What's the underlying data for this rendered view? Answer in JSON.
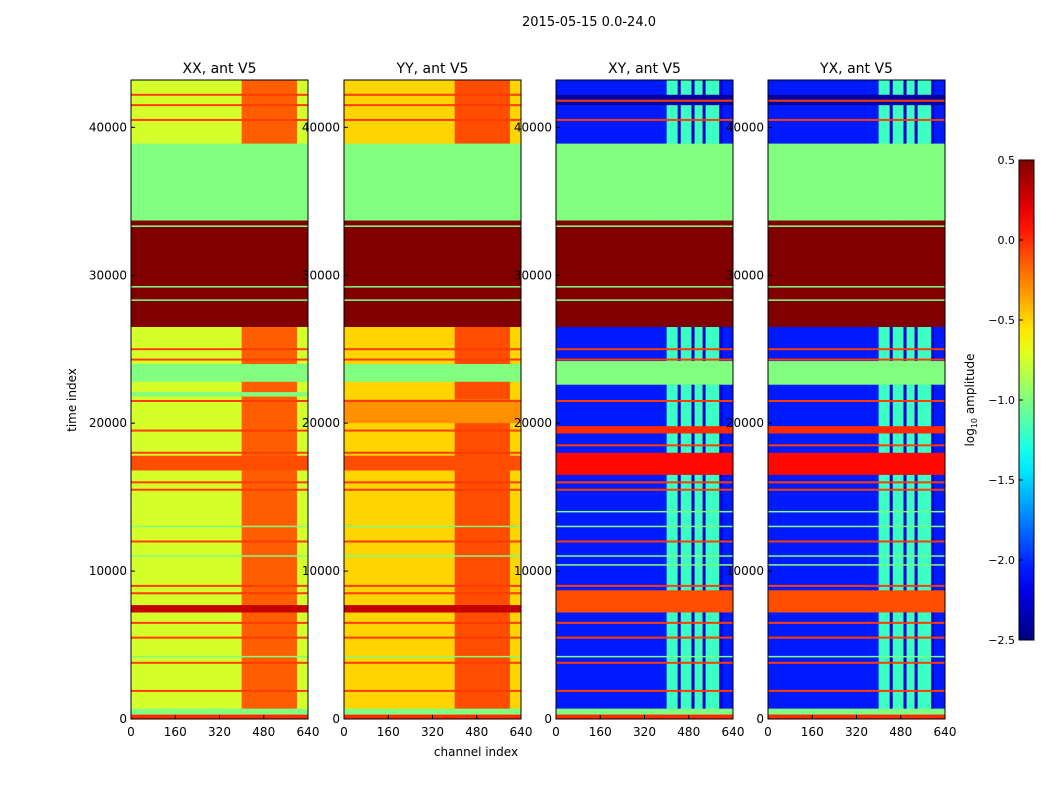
{
  "chart_data": {
    "type": "heatmap",
    "suptitle": "2015-05-15 0.0-24.0",
    "xlabel": "channel index",
    "ylabel": "time index",
    "xlim": [
      0,
      640
    ],
    "ylim": [
      0,
      43200
    ],
    "xticks": [
      0,
      160,
      320,
      480,
      640
    ],
    "yticks": [
      0,
      10000,
      20000,
      30000,
      40000
    ],
    "colorbar": {
      "label": "log10 amplitude",
      "label_main": "log",
      "label_sub": "10",
      "label_rest": " amplitude",
      "range": [
        -2.5,
        0.5
      ],
      "ticks": [
        "0.5",
        "0.0",
        "−0.5",
        "−1.0",
        "−1.5",
        "−2.0",
        "−2.5"
      ],
      "tick_values": [
        0.5,
        0.0,
        -0.5,
        -1.0,
        -1.5,
        -2.0,
        -2.5
      ],
      "colormap": "jet"
    },
    "panels": [
      {
        "title": "XX, ant V5",
        "base": -0.75,
        "hot_channels": [
          400,
          600
        ],
        "hot_value": -0.15,
        "stripes": [],
        "bands": [
          [
            0,
            300,
            0.0
          ],
          [
            300,
            700,
            -1.0
          ],
          [
            7200,
            7700,
            0.3
          ],
          [
            16800,
            17800,
            -0.1
          ],
          [
            21800,
            22100,
            -1.0
          ],
          [
            22800,
            24000,
            -1.0
          ],
          [
            26500,
            33700,
            0.5
          ],
          [
            33700,
            38900,
            -1.0
          ]
        ],
        "lines": [
          1900,
          3800,
          5500,
          6500,
          8500,
          9000,
          12000,
          15500,
          16000,
          18000,
          19500,
          21500,
          24300,
          25000,
          40500,
          41500,
          42200
        ],
        "line_value": -0.05,
        "green_lines": [
          28300,
          29200,
          33300,
          13000,
          11000,
          4200
        ]
      },
      {
        "title": "YY, ant V5",
        "base": -0.5,
        "hot_channels": [
          400,
          600
        ],
        "hot_value": -0.1,
        "stripes": [],
        "bands": [
          [
            0,
            300,
            0.0
          ],
          [
            300,
            700,
            -1.0
          ],
          [
            7200,
            7700,
            0.3
          ],
          [
            16800,
            17800,
            -0.1
          ],
          [
            20000,
            21600,
            -0.3
          ],
          [
            22800,
            24000,
            -1.0
          ],
          [
            26500,
            33700,
            0.5
          ],
          [
            33700,
            38900,
            -1.0
          ]
        ],
        "lines": [
          1900,
          3800,
          5500,
          6500,
          8500,
          9000,
          12000,
          15500,
          16000,
          18000,
          19500,
          21500,
          24300,
          25000,
          40500,
          41500,
          42200
        ],
        "line_value": -0.05,
        "green_lines": [
          28300,
          29200,
          33300,
          13000,
          11000,
          4200
        ]
      },
      {
        "title": "XY, ant V5",
        "base": -2.05,
        "hot_channels": [
          400,
          600
        ],
        "hot_value": -1.2,
        "stripes": [
          440,
          490,
          530,
          590
        ],
        "bands": [
          [
            0,
            300,
            0.0
          ],
          [
            300,
            700,
            -1.0
          ],
          [
            7200,
            8700,
            -0.1
          ],
          [
            16500,
            18000,
            0.1
          ],
          [
            19300,
            19800,
            0.0
          ],
          [
            22600,
            24200,
            -1.0
          ],
          [
            26500,
            33700,
            0.5
          ],
          [
            33700,
            38900,
            -1.0
          ],
          [
            41500,
            42200,
            -2.4
          ]
        ],
        "lines": [
          1900,
          3800,
          5500,
          6500,
          9000,
          12000,
          15500,
          16000,
          18500,
          21500,
          24300,
          25000,
          40500,
          41800
        ],
        "line_value": -0.05,
        "green_lines": [
          28300,
          29200,
          33300,
          13000,
          11000,
          4200,
          10400,
          14000
        ]
      },
      {
        "title": "YX, ant V5",
        "base": -2.05,
        "hot_channels": [
          400,
          600
        ],
        "hot_value": -1.2,
        "stripes": [
          440,
          490,
          530,
          590
        ],
        "bands": [
          [
            0,
            300,
            0.0
          ],
          [
            300,
            700,
            -1.0
          ],
          [
            7200,
            8700,
            -0.1
          ],
          [
            16500,
            18000,
            0.1
          ],
          [
            19300,
            19800,
            0.0
          ],
          [
            22600,
            24200,
            -1.0
          ],
          [
            26500,
            33700,
            0.5
          ],
          [
            33700,
            38900,
            -1.0
          ],
          [
            41500,
            42200,
            -2.4
          ]
        ],
        "lines": [
          1900,
          3800,
          5500,
          6500,
          9000,
          12000,
          15500,
          16000,
          18500,
          21500,
          24300,
          25000,
          40500,
          41800
        ],
        "line_value": -0.05,
        "green_lines": [
          28300,
          29200,
          33300,
          13000,
          11000,
          4200,
          10400,
          14000
        ]
      }
    ]
  }
}
